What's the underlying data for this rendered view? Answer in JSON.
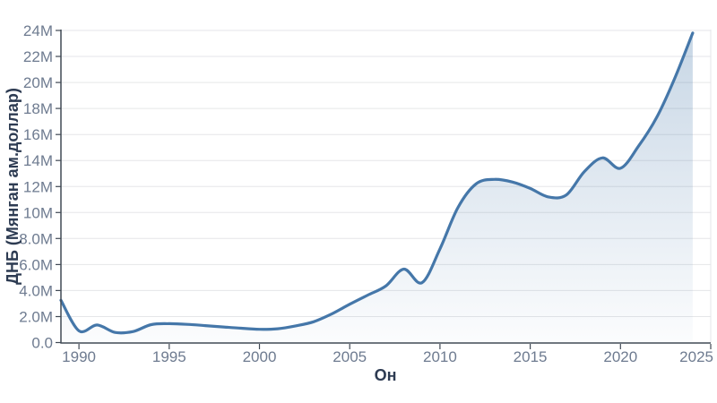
{
  "chart_data": {
    "type": "area",
    "title": "",
    "xlabel": "Он",
    "ylabel": "ДНБ (Мянган ам.доллар)",
    "unit_suffix": "M",
    "x": [
      1989,
      1990,
      1991,
      1992,
      1993,
      1994,
      1995,
      1996,
      1997,
      1998,
      1999,
      2000,
      2001,
      2002,
      2003,
      2004,
      2005,
      2006,
      2007,
      2008,
      2009,
      2010,
      2011,
      2012,
      2013,
      2014,
      2015,
      2016,
      2017,
      2018,
      2019,
      2020,
      2021,
      2022,
      2023,
      2024
    ],
    "values_millions": [
      3.25,
      0.9,
      1.35,
      0.78,
      0.85,
      1.38,
      1.45,
      1.4,
      1.3,
      1.2,
      1.1,
      1.02,
      1.06,
      1.28,
      1.6,
      2.2,
      2.95,
      3.65,
      4.35,
      5.65,
      4.6,
      7.2,
      10.4,
      12.2,
      12.55,
      12.35,
      11.85,
      11.2,
      11.35,
      13.15,
      14.2,
      13.4,
      15.1,
      17.3,
      20.3,
      23.8
    ],
    "xlim": [
      1989,
      2025
    ],
    "ylim_millions": [
      0,
      24
    ],
    "x_ticks": [
      1990,
      1995,
      2000,
      2005,
      2010,
      2015,
      2020,
      2025
    ],
    "x_tick_labels": [
      "1990",
      "1995",
      "2000",
      "2005",
      "2010",
      "2015",
      "2020",
      "2025"
    ],
    "y_ticks_millions": [
      0,
      2,
      4,
      6,
      8,
      10,
      12,
      14,
      16,
      18,
      20,
      22,
      24
    ],
    "y_tick_labels": [
      "0.0",
      "2.0M",
      "4.0M",
      "6.0M",
      "8.0M",
      "10M",
      "12M",
      "14M",
      "16M",
      "18M",
      "20M",
      "22M",
      "24M"
    ],
    "grid": "horizontal",
    "legend_position": "none",
    "colors": {
      "line": "#4577a9",
      "fill_base": "69,119,169",
      "fill_top_alpha": 0.3,
      "fill_bottom_alpha": 0.02,
      "gridline": "#e5e6e8",
      "axis": "#414a55",
      "tick_label": "#6e7b90",
      "axis_title": "#2d3b52",
      "background": "#ffffff"
    }
  }
}
